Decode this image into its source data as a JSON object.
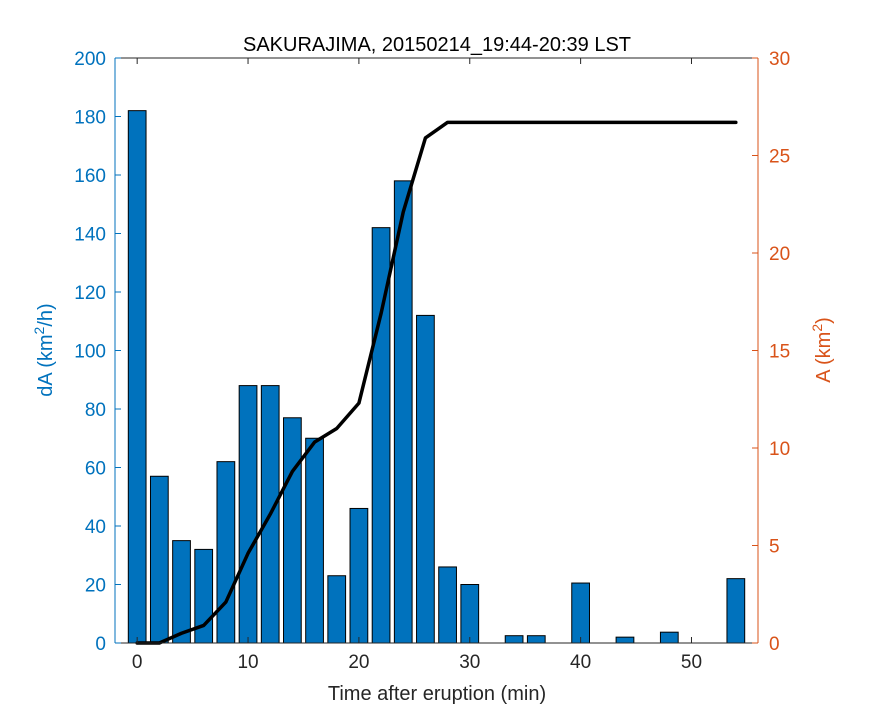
{
  "chart_data": {
    "type": "bar",
    "title": "SAKURAJIMA, 20150214_19:44-20:39 LST",
    "xlabel": "Time after eruption (min)",
    "ylabel": {
      "main": "dA (km",
      "sup": "2",
      "tail": "/h)"
    },
    "y2label": {
      "main": "A (km",
      "sup": "2",
      "tail": ")"
    },
    "xlim": [
      -2,
      56
    ],
    "ylim": [
      0,
      200
    ],
    "y2lim": [
      0,
      30
    ],
    "xticks": [
      "0",
      "10",
      "20",
      "30",
      "40",
      "50"
    ],
    "yticks": [
      "0",
      "20",
      "40",
      "60",
      "80",
      "100",
      "120",
      "140",
      "160",
      "180",
      "200"
    ],
    "y2ticks": [
      "0",
      "5",
      "10",
      "15",
      "20",
      "25",
      "30"
    ],
    "grid": false,
    "series": [
      {
        "axis": "left",
        "kind": "bar",
        "color": "#0072BD",
        "x": [
          0,
          2,
          4,
          6,
          8,
          10,
          12,
          14,
          16,
          18,
          20,
          22,
          24,
          26,
          28,
          30,
          32,
          34,
          36,
          38,
          40,
          42,
          44,
          46,
          48,
          50,
          52,
          54
        ],
        "values": [
          182,
          57,
          35,
          32,
          62,
          88,
          88,
          77,
          70,
          23,
          46,
          142,
          158,
          112,
          26,
          20,
          0,
          2.5,
          2.5,
          0,
          20.5,
          0,
          2,
          0,
          3.7,
          0,
          0,
          22
        ]
      },
      {
        "axis": "right",
        "kind": "line",
        "color": "#000000",
        "x": [
          0,
          2,
          4,
          6,
          8,
          10,
          12,
          14,
          16,
          18,
          20,
          22,
          24,
          26,
          28,
          30,
          32,
          34,
          36,
          38,
          40,
          42,
          44,
          46,
          48,
          50,
          52,
          54
        ],
        "values": [
          0,
          0,
          0.5,
          0.9,
          2.1,
          4.6,
          6.6,
          8.8,
          10.3,
          11,
          12.3,
          16.9,
          22.1,
          25.9,
          26.7,
          26.7,
          26.7,
          26.7,
          26.7,
          26.7,
          26.7,
          26.7,
          26.7,
          26.7,
          26.7,
          26.7,
          26.7,
          26.7
        ]
      }
    ],
    "colors": {
      "left_axis": "#0072BD",
      "right_axis": "#D95319",
      "bars": "#0072BD",
      "line": "#000000",
      "box": "#262626"
    }
  }
}
